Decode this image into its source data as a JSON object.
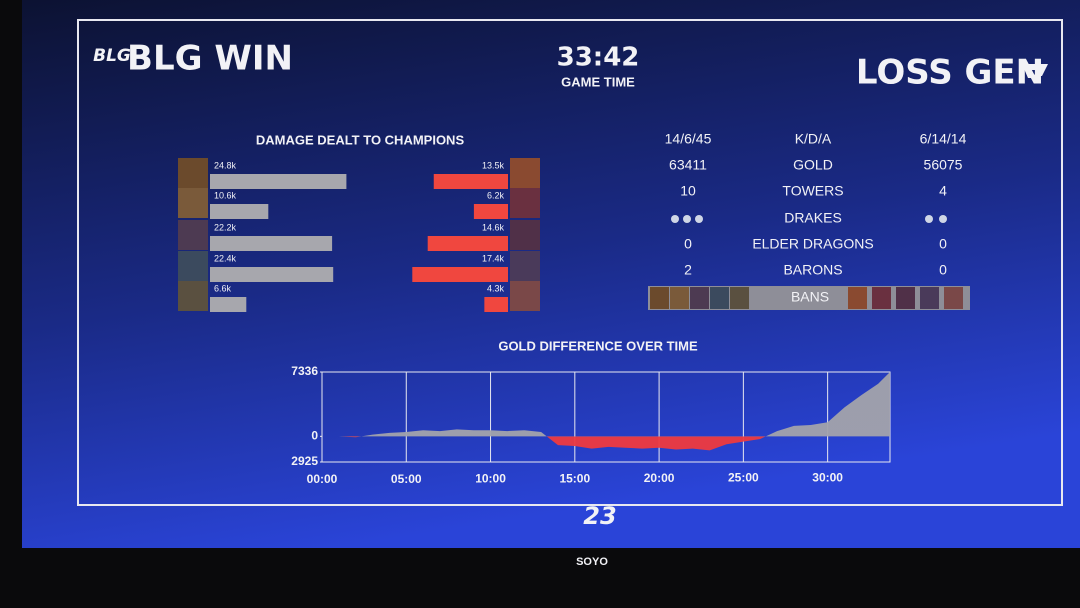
{
  "header": {
    "left_logo": "BLG",
    "left_result": "BLG WIN",
    "time": "33:42",
    "time_label": "GAME TIME",
    "right_result": "LOSS GEN"
  },
  "damage": {
    "title": "DAMAGE DEALT TO CHAMPIONS",
    "blue": {
      "values": [
        24800,
        10600,
        22200,
        22400,
        6600
      ],
      "value_labels": [
        "24.8k",
        "10.6k",
        "22.2k",
        "22.4k",
        "6.6k"
      ],
      "color": "#a7a7ad"
    },
    "red": {
      "values": [
        13500,
        6200,
        14600,
        17400,
        4300
      ],
      "value_labels": [
        "13.5k",
        "6.2k",
        "14.6k",
        "17.4k",
        "4.3k"
      ],
      "color": "#f0473f"
    }
  },
  "stats": {
    "rows": [
      [
        "14/6/45",
        "K/D/A",
        "6/14/14"
      ],
      [
        "63411",
        "GOLD",
        "56075"
      ],
      [
        "10",
        "TOWERS",
        "4"
      ],
      [
        "DRAKES"
      ],
      [
        "0",
        "ELDER DRAGONS",
        "0"
      ],
      [
        "2",
        "BARONS",
        "0"
      ],
      [
        "BANS"
      ]
    ]
  },
  "chart_data": {
    "type": "area",
    "title": "GOLD DIFFERENCE OVER TIME",
    "x": [
      0,
      1,
      2,
      3,
      4,
      5,
      6,
      7,
      8,
      9,
      10,
      11,
      12,
      13,
      14,
      15,
      16,
      17,
      18,
      19,
      20,
      21,
      22,
      23,
      24,
      25,
      26,
      27,
      28,
      29,
      30,
      31,
      32,
      33,
      33.7
    ],
    "series": [
      {
        "color": "#a3a3ab",
        "negative_color": "#ee3a3f",
        "values": [
          0,
          0,
          -100,
          200,
          400,
          500,
          700,
          600,
          800,
          700,
          700,
          600,
          700,
          500,
          -1000,
          -1100,
          -1400,
          -1200,
          -1300,
          -1400,
          -1300,
          -1500,
          -1400,
          -1600,
          -900,
          -600,
          -300,
          600,
          1200,
          1300,
          1600,
          3300,
          4700,
          6000,
          7336
        ]
      }
    ],
    "xlim": [
      0,
      33.7
    ],
    "ylim": [
      -2925,
      7336
    ],
    "yticks": [
      7336,
      0,
      {
        "value": -2925,
        "label": "2925"
      }
    ],
    "xticks": [
      {
        "value": 0,
        "label": "00:00"
      },
      {
        "value": 5,
        "label": "05:00"
      },
      {
        "value": 10,
        "label": "10:00"
      },
      {
        "value": 15,
        "label": "15:00"
      },
      {
        "value": 20,
        "label": "20:00"
      },
      {
        "value": 25,
        "label": "25:00"
      },
      {
        "value": 30,
        "label": "30:00"
      }
    ],
    "grid": true
  },
  "footer": {
    "logo": "23"
  },
  "bezel": {
    "brand": "SOYO"
  }
}
